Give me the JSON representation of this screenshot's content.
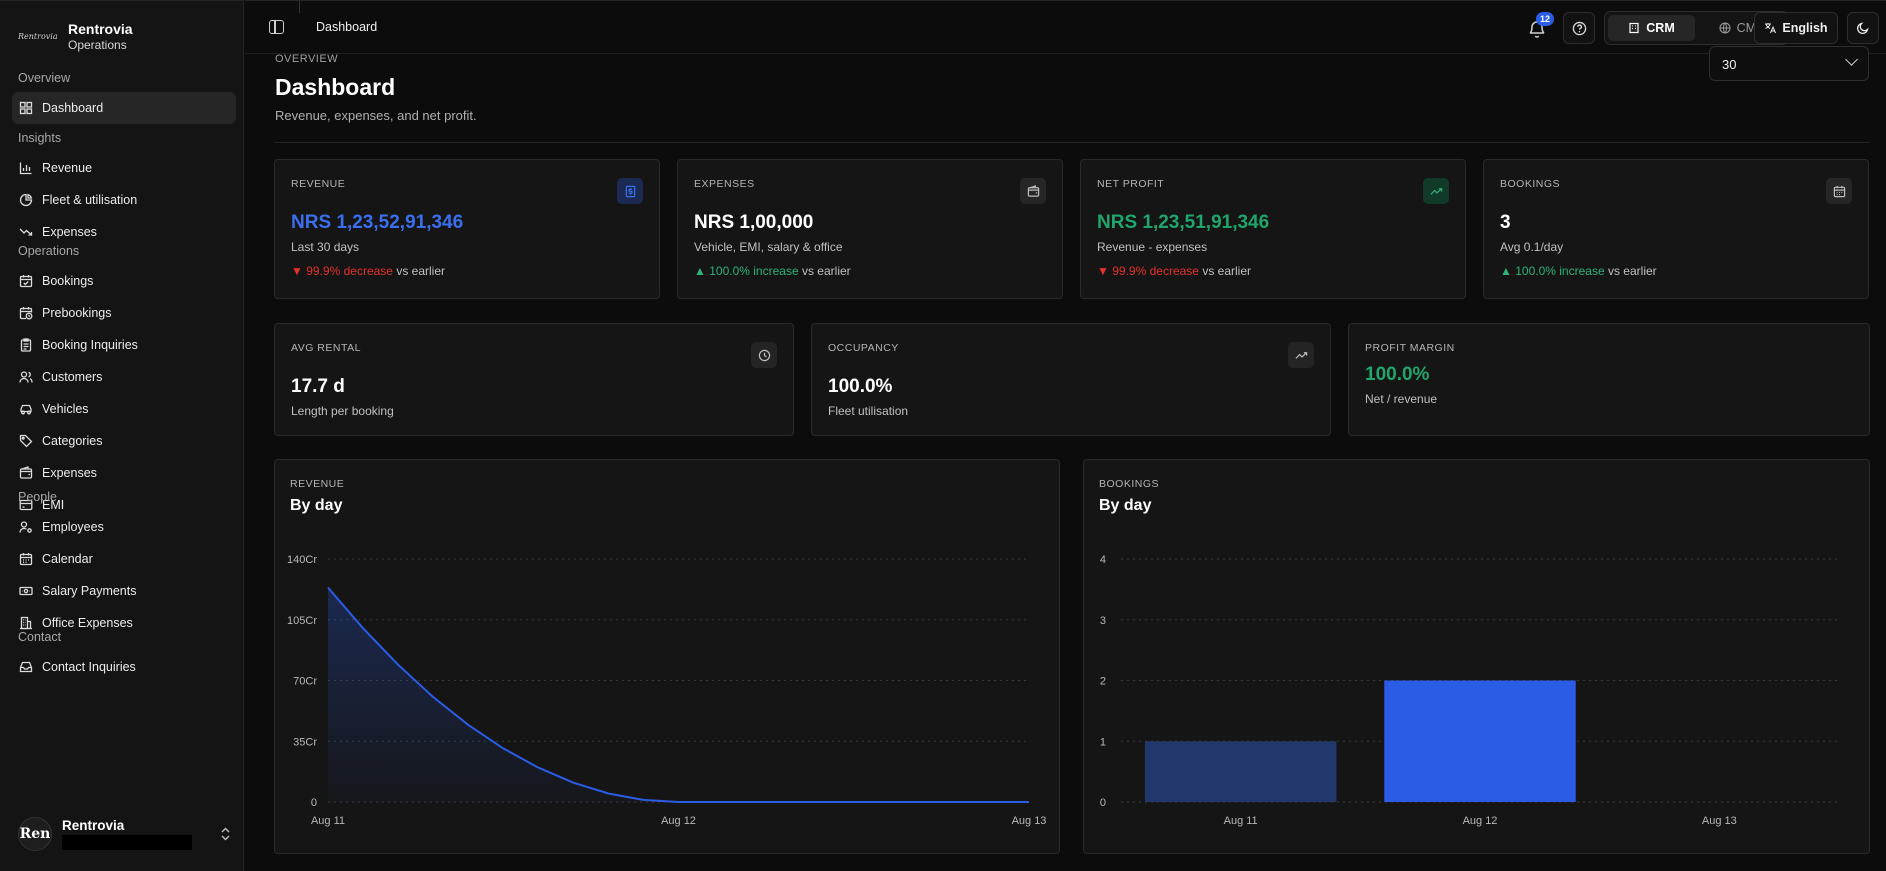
{
  "sidebar": {
    "brand": {
      "logo_text": "Rentrovia",
      "title": "Rentrovia",
      "subtitle": "Operations"
    },
    "groups": [
      {
        "label": "Overview",
        "items": [
          {
            "label": "Dashboard",
            "icon": "layout-grid-icon",
            "active": true
          }
        ]
      },
      {
        "label": "Insights",
        "items": [
          {
            "label": "Revenue",
            "icon": "bar-chart-icon"
          },
          {
            "label": "Fleet & utilisation",
            "icon": "pie-chart-icon"
          },
          {
            "label": "Expenses",
            "icon": "trending-down-icon"
          }
        ]
      },
      {
        "label": "Operations",
        "items": [
          {
            "label": "Bookings",
            "icon": "calendar-check-icon"
          },
          {
            "label": "Prebookings",
            "icon": "calendar-clock-icon"
          },
          {
            "label": "Booking Inquiries",
            "icon": "clipboard-icon"
          },
          {
            "label": "Customers",
            "icon": "users-icon"
          },
          {
            "label": "Vehicles",
            "icon": "car-icon"
          },
          {
            "label": "Categories",
            "icon": "tags-icon"
          },
          {
            "label": "Expenses",
            "icon": "wallet-icon"
          },
          {
            "label": "EMI",
            "icon": "credit-card-icon"
          }
        ]
      },
      {
        "label": "People",
        "items": [
          {
            "label": "Employees",
            "icon": "user-cog-icon"
          },
          {
            "label": "Calendar",
            "icon": "calendar-icon"
          },
          {
            "label": "Salary Payments",
            "icon": "banknote-icon"
          },
          {
            "label": "Office Expenses",
            "icon": "building-icon"
          }
        ]
      },
      {
        "label": "Contact",
        "items": [
          {
            "label": "Contact Inquiries",
            "icon": "inbox-icon"
          }
        ]
      }
    ],
    "user": {
      "avatar_text": "Ren",
      "name": "Rentrovia"
    }
  },
  "topbar": {
    "title": "Dashboard",
    "notification_count": "12",
    "crm_label": "CRM",
    "cms_label": "CMS",
    "language": "English"
  },
  "page": {
    "overview_label": "OVERVIEW",
    "title": "Dashboard",
    "subtitle": "Revenue, expenses, and net profit.",
    "range_value": "30"
  },
  "stats": [
    {
      "label": "REVENUE",
      "value": "NRS 1,23,52,91,346",
      "note": "Last 30 days",
      "trend_arrow": "▼",
      "trend_text": "99.9% decrease",
      "trend_dir": "down",
      "vs": "vs earlier",
      "icon": "dollar-icon",
      "value_color": "#3a6ff0"
    },
    {
      "label": "EXPENSES",
      "value": "NRS 1,00,000",
      "note": "Vehicle, EMI, salary & office",
      "trend_arrow": "▲",
      "trend_text": "100.0% increase",
      "trend_dir": "up",
      "vs": "vs earlier",
      "icon": "wallet-icon",
      "value_color": "#ffffff"
    },
    {
      "label": "NET PROFIT",
      "value": "NRS 1,23,51,91,346",
      "note": "Revenue - expenses",
      "trend_arrow": "▼",
      "trend_text": "99.9% decrease",
      "trend_dir": "down",
      "vs": "vs earlier",
      "icon": "trending-up-icon",
      "value_color": "#20a56b"
    },
    {
      "label": "BOOKINGS",
      "value": "3",
      "note": "Avg 0.1/day",
      "trend_arrow": "▲",
      "trend_text": "100.0% increase",
      "trend_dir": "up",
      "vs": "vs earlier",
      "icon": "calendar-icon",
      "value_color": "#ffffff"
    }
  ],
  "metrics": [
    {
      "label": "AVG RENTAL",
      "value": "17.7 d",
      "note": "Length per booking",
      "icon": "clock-icon",
      "value_color": "#ffffff"
    },
    {
      "label": "OCCUPANCY",
      "value": "100.0%",
      "note": "Fleet utilisation",
      "icon": "trending-up-icon",
      "value_color": "#ffffff"
    },
    {
      "label": "PROFIT MARGIN",
      "value": "100.0%",
      "note": "Net / revenue",
      "icon": "",
      "value_color": "#20a56b"
    }
  ],
  "colors": {
    "accent": "#2b5ce6",
    "up": "#2fb27a",
    "down": "#e5322d"
  },
  "chart_data": [
    {
      "type": "area",
      "label": "REVENUE",
      "title": "By day",
      "x": [
        "Aug 11",
        "Aug 12",
        "Aug 13"
      ],
      "y_ticks": [
        "0",
        "35Cr",
        "70Cr",
        "105Cr",
        "140Cr"
      ],
      "ylim": [
        0,
        140
      ],
      "curve_x": [
        0,
        0.1,
        0.2,
        0.3,
        0.4,
        0.5,
        0.6,
        0.7,
        0.8,
        0.9,
        1.0,
        1.5,
        2.0
      ],
      "curve_y": [
        123.5,
        100.1,
        79.1,
        60.5,
        44.5,
        30.9,
        19.8,
        11.1,
        4.9,
        1.2,
        0,
        0,
        0
      ],
      "color": "#2b5ce6",
      "grid": true
    },
    {
      "type": "bar",
      "label": "BOOKINGS",
      "title": "By day",
      "categories": [
        "Aug 11",
        "Aug 12",
        "Aug 13"
      ],
      "values": [
        1,
        2,
        0
      ],
      "y_ticks": [
        "0",
        "1",
        "2",
        "3",
        "4"
      ],
      "ylim": [
        0,
        4
      ],
      "colors": [
        "#22376b",
        "#2b5ce6",
        "#2b5ce6"
      ],
      "grid": true
    }
  ]
}
